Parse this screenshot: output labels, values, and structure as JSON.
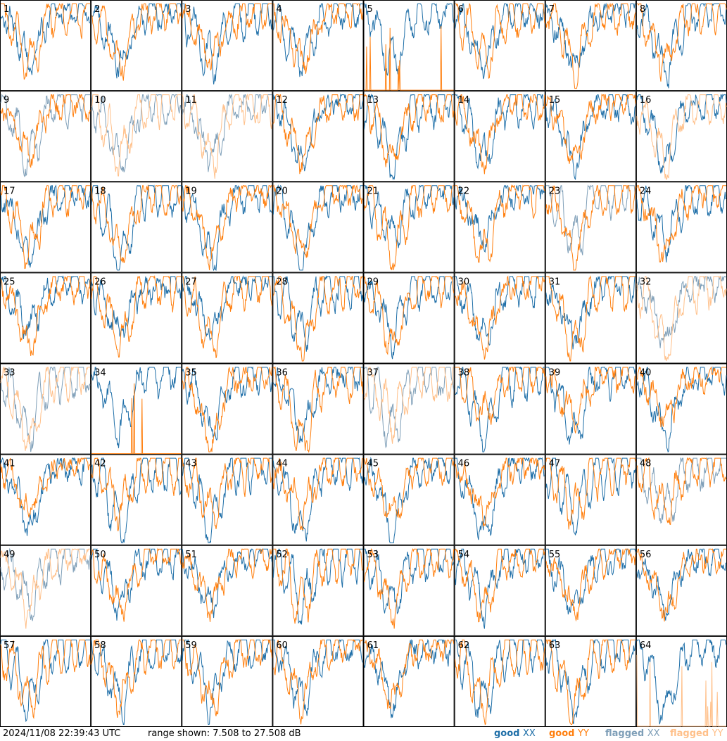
{
  "chart_data": {
    "type": "line",
    "panel_ids": [
      "1",
      "2",
      "3",
      "4",
      "5",
      "6",
      "7",
      "8",
      "9",
      "10",
      "11",
      "12",
      "13",
      "14",
      "15",
      "16",
      "17",
      "18",
      "19",
      "20",
      "21",
      "22",
      "23",
      "24",
      "25",
      "26",
      "27",
      "28",
      "29",
      "30",
      "31",
      "32",
      "33",
      "34",
      "35",
      "36",
      "37",
      "38",
      "39",
      "40",
      "41",
      "42",
      "43",
      "44",
      "45",
      "46",
      "47",
      "48",
      "49",
      "50",
      "51",
      "52",
      "53",
      "54",
      "55",
      "56",
      "57",
      "58",
      "59",
      "60",
      "61",
      "62",
      "63",
      "64"
    ],
    "xx_flagged": [
      9,
      10,
      11,
      23,
      32,
      33,
      37,
      48,
      49
    ],
    "yy_flagged": [
      10,
      11,
      16,
      32,
      33,
      37,
      49,
      64
    ],
    "yy_only": [
      64
    ],
    "xx_weak": [
      5,
      34
    ],
    "legend": [
      {
        "key": "good_xx",
        "label_prefix": "good",
        "label_pol": "XX",
        "color": "#1f6fa8"
      },
      {
        "key": "good_yy",
        "label_prefix": "good",
        "label_pol": "YY",
        "color": "#ff7f0e"
      },
      {
        "key": "flagged_xx",
        "label_prefix": "flagged",
        "label_pol": "XX",
        "color": "#7f9fb8"
      },
      {
        "key": "flagged_yy",
        "label_prefix": "flagged",
        "label_pol": "YY",
        "color": "#ffc08a"
      }
    ],
    "range": {
      "min": 7.508,
      "max": 27.508,
      "unit": "dB"
    }
  },
  "footer": {
    "timestamp": "2024/11/08 22:39:43 UTC",
    "range_text": "range shown: 7.508 to 27.508 dB"
  }
}
